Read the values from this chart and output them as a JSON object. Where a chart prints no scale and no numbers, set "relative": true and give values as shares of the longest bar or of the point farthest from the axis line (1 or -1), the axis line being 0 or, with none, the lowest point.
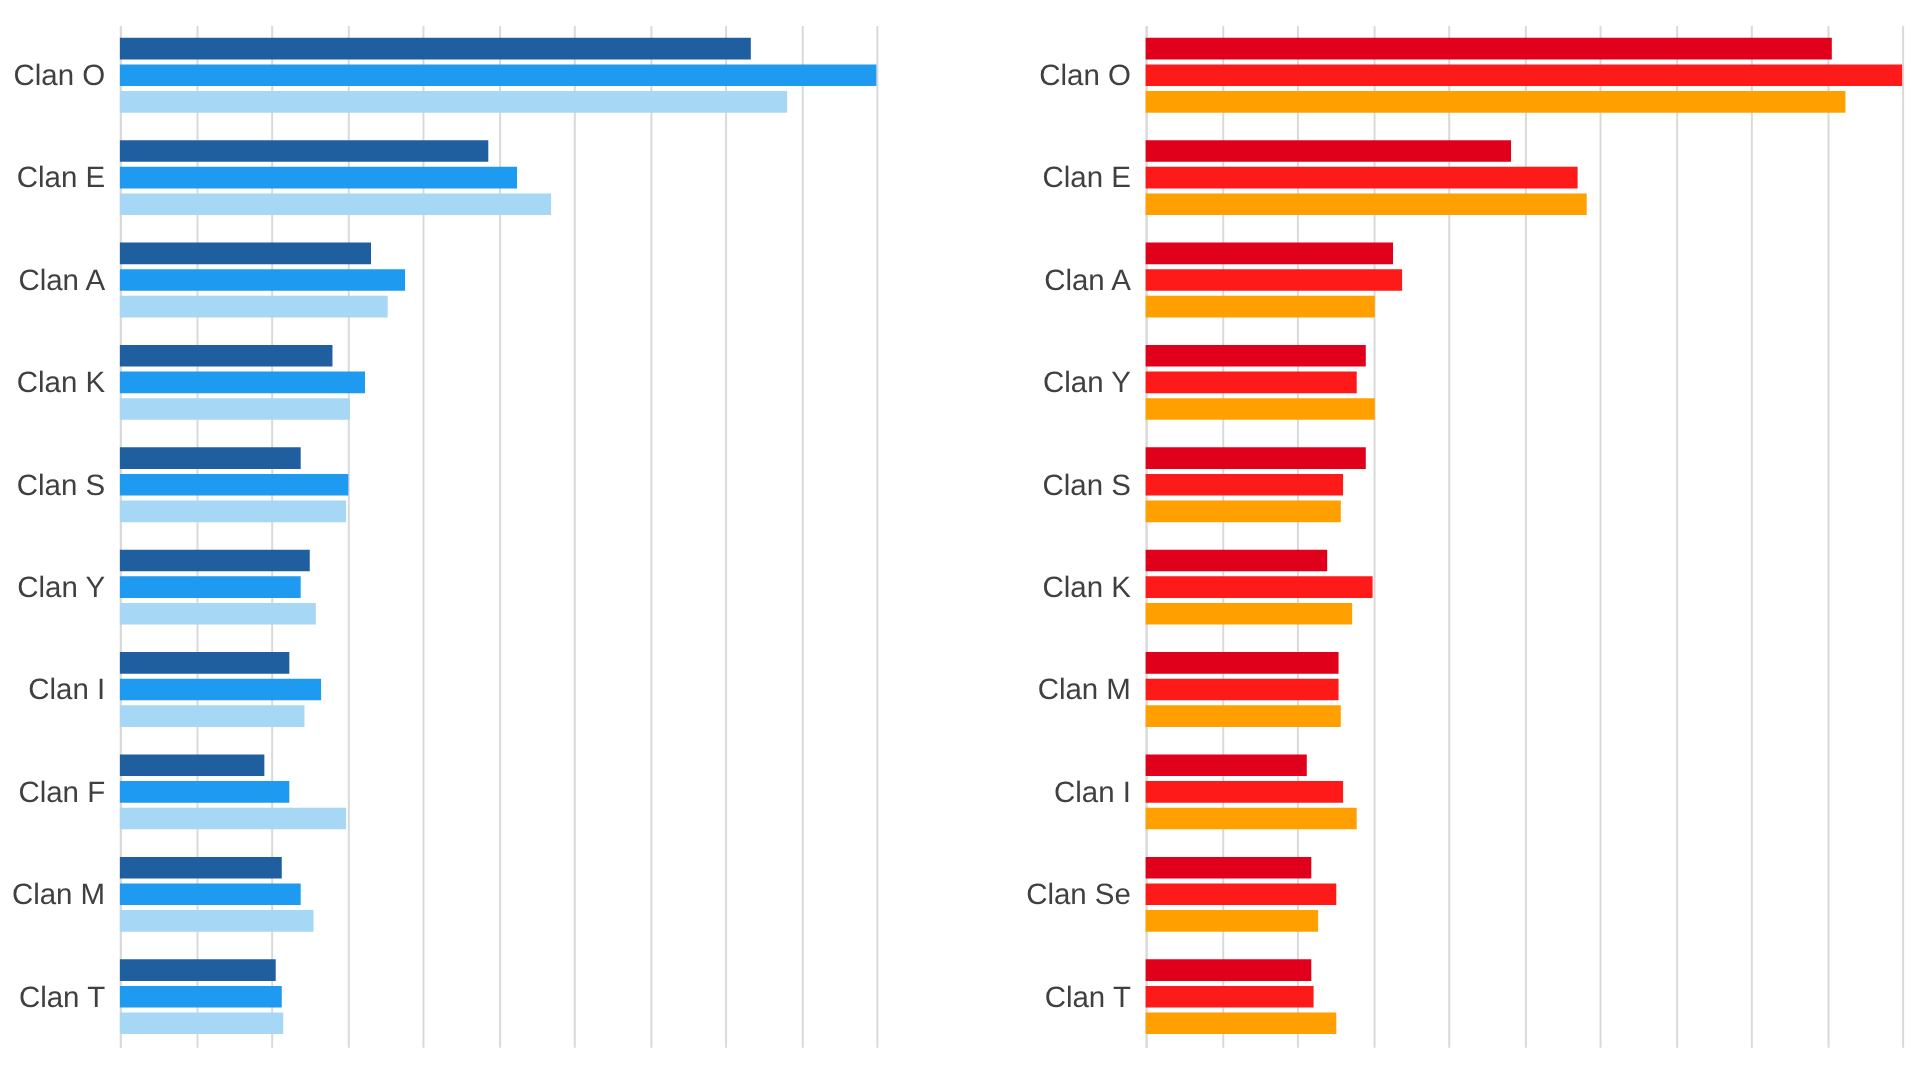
{
  "chart_data": [
    {
      "type": "bar",
      "orientation": "horizontal",
      "relative": true,
      "grid": "x",
      "legend": false,
      "categories": [
        "Clan O",
        "Clan E",
        "Clan A",
        "Clan K",
        "Clan S",
        "Clan Y",
        "Clan I",
        "Clan F",
        "Clan M",
        "Clan T"
      ],
      "series": [
        {
          "color": "#1f5fa0",
          "values": [
            0.834,
            0.487,
            0.332,
            0.281,
            0.239,
            0.251,
            0.224,
            0.191,
            0.214,
            0.206
          ]
        },
        {
          "color": "#1e9af0",
          "values": [
            1,
            0.525,
            0.377,
            0.324,
            0.302,
            0.239,
            0.266,
            0.224,
            0.239,
            0.214
          ]
        },
        {
          "color": "#a6d8f5",
          "values": [
            0.882,
            0.57,
            0.354,
            0.304,
            0.299,
            0.259,
            0.244,
            0.299,
            0.256,
            0.216
          ]
        }
      ]
    },
    {
      "type": "bar",
      "orientation": "horizontal",
      "relative": true,
      "grid": "x",
      "legend": false,
      "categories": [
        "Clan O",
        "Clan E",
        "Clan A",
        "Clan Y",
        "Clan S",
        "Clan K",
        "Clan M",
        "Clan I",
        "Clan Se",
        "Clan T"
      ],
      "series": [
        {
          "color": "#e0001b",
          "values": [
            0.907,
            0.483,
            0.327,
            0.291,
            0.291,
            0.24,
            0.255,
            0.213,
            0.219,
            0.219
          ]
        },
        {
          "color": "#ff1a1a",
          "values": [
            1,
            0.571,
            0.339,
            0.279,
            0.261,
            0.3,
            0.255,
            0.261,
            0.252,
            0.222
          ]
        },
        {
          "color": "#ffa000",
          "values": [
            0.925,
            0.583,
            0.303,
            0.303,
            0.258,
            0.273,
            0.258,
            0.279,
            0.228,
            0.252
          ]
        }
      ]
    }
  ]
}
